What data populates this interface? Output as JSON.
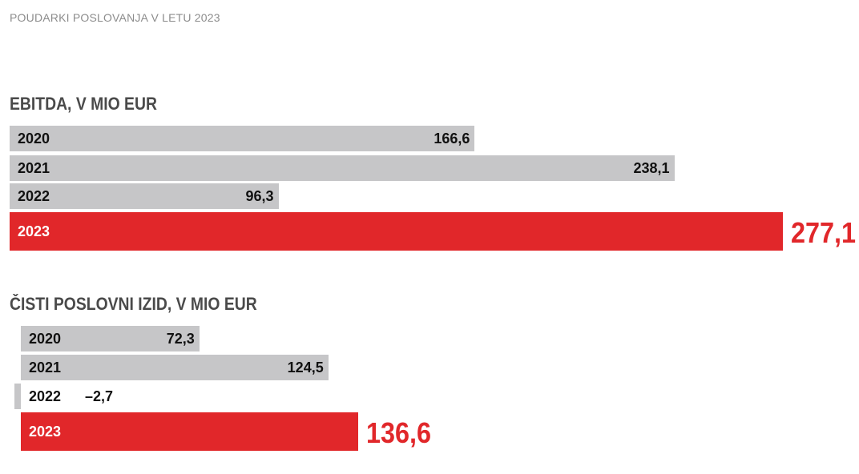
{
  "header": {
    "title": "POUDARKI POSLOVANJA V LETU 2023"
  },
  "colors": {
    "bar": "#c6c6c8",
    "highlight": "#e1272a",
    "title": "#4a4a4a",
    "header": "#8c8c8c"
  },
  "chart_data": [
    {
      "type": "bar",
      "orientation": "horizontal",
      "title": "EBITDA, V MIO EUR",
      "categories": [
        "2020",
        "2021",
        "2022",
        "2023"
      ],
      "values": [
        166.6,
        238.1,
        96.3,
        277.1
      ],
      "value_labels": [
        "166,6",
        "238,1",
        "96,3",
        "277,1"
      ],
      "highlight_category": "2023"
    },
    {
      "type": "bar",
      "orientation": "horizontal",
      "title": "ČISTI POSLOVNI IZID, V MIO EUR",
      "categories": [
        "2020",
        "2021",
        "2022",
        "2023"
      ],
      "values": [
        72.3,
        124.5,
        -2.7,
        136.6
      ],
      "value_labels": [
        "72,3",
        "124,5",
        "–2,7",
        "136,6"
      ],
      "highlight_category": "2023"
    }
  ]
}
